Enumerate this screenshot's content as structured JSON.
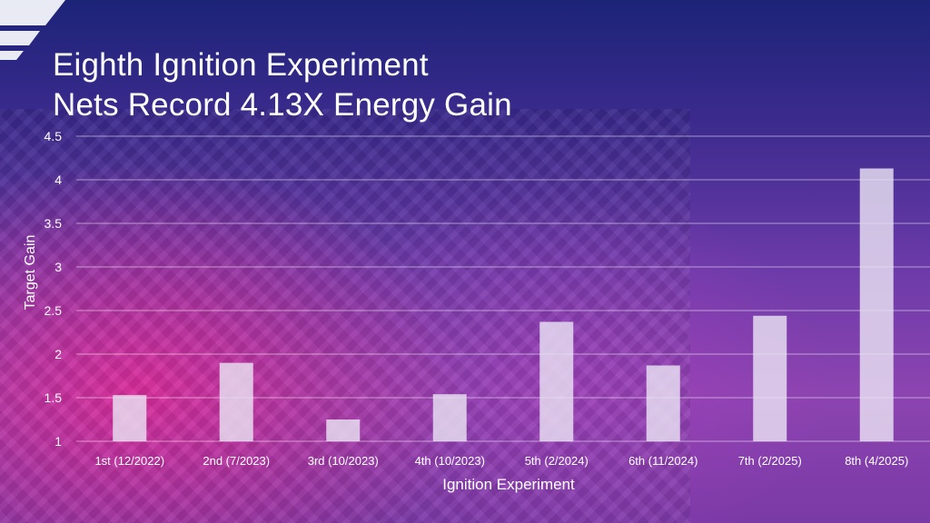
{
  "title_lines": [
    "Eighth Ignition Experiment",
    "Nets Record 4.13X Energy Gain"
  ],
  "colors": {
    "bar": "#e9e2f3",
    "text": "#ffffff",
    "grid": "#ffffff"
  },
  "chart_data": {
    "type": "bar",
    "title": "Eighth Ignition Experiment Nets Record 4.13X Energy Gain",
    "xlabel": "Ignition Experiment",
    "ylabel": "Target Gain",
    "ylim": [
      1,
      4.5
    ],
    "yticks": [
      "1",
      "1.5",
      "2",
      "2.5",
      "3",
      "3.5",
      "4",
      "4.5"
    ],
    "grid": true,
    "categories": [
      "1st (12/2022)",
      "2nd (7/2023)",
      "3rd (10/2023)",
      "4th (10/2023)",
      "5th (2/2024)",
      "6th (11/2024)",
      "7th (2/2025)",
      "8th (4/2025)"
    ],
    "values": [
      1.53,
      1.9,
      1.25,
      1.54,
      2.37,
      1.87,
      2.44,
      4.13
    ]
  }
}
